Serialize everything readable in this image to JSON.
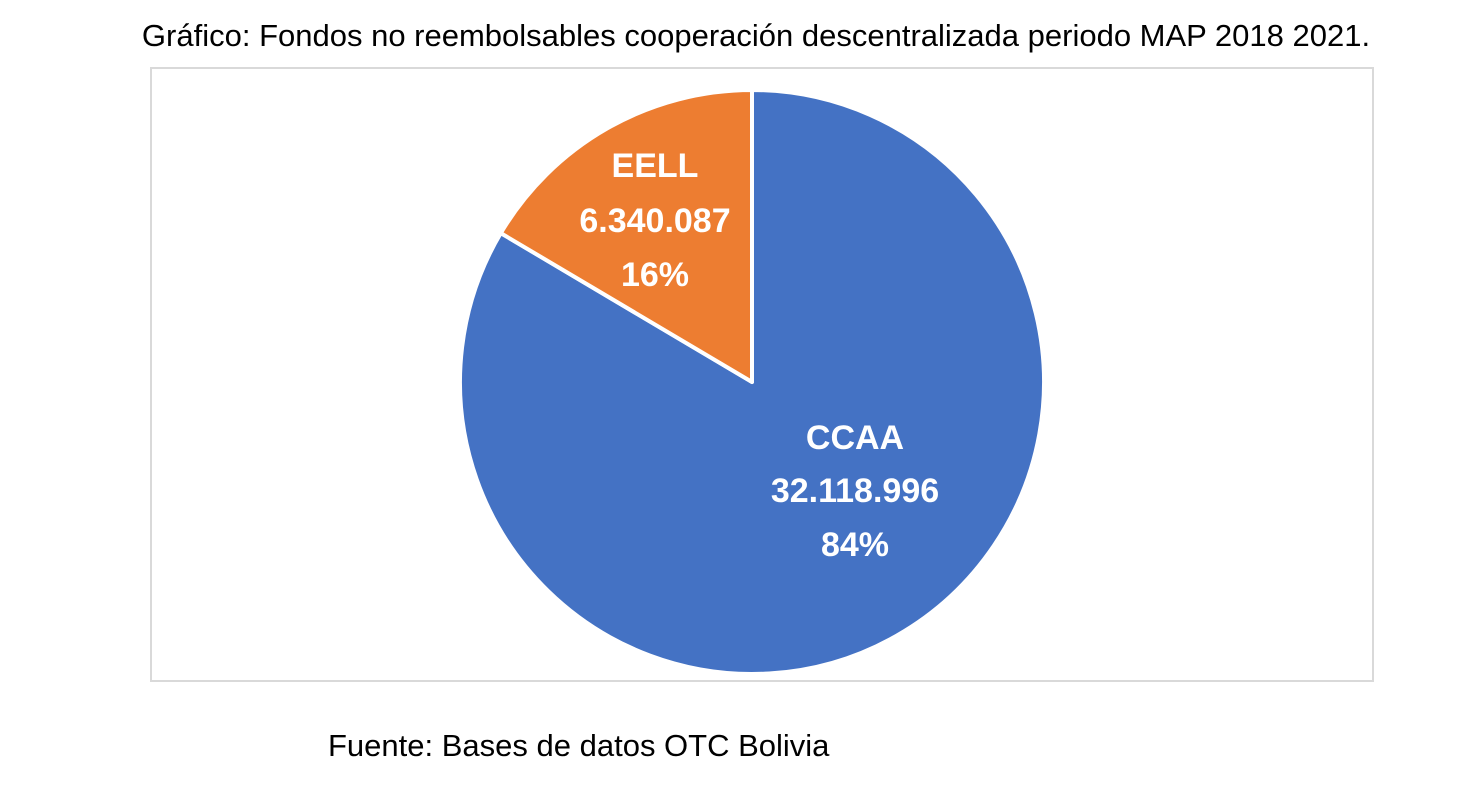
{
  "chart_data": {
    "type": "pie",
    "title": "Gráfico: Fondos no reembolsables cooperación descentralizada periodo MAP 2018 2021.",
    "source": "Fuente: Bases de datos OTC Bolivia",
    "slices": [
      {
        "name": "CCAA",
        "value": 32118996,
        "value_label": "32.118.996",
        "percent_label": "84%",
        "color": "#4472c4"
      },
      {
        "name": "EELL",
        "value": 6340087,
        "value_label": "6.340.087",
        "percent_label": "16%",
        "color": "#ed7d31"
      }
    ],
    "legend": "none",
    "slice_border_color": "#ffffff"
  }
}
